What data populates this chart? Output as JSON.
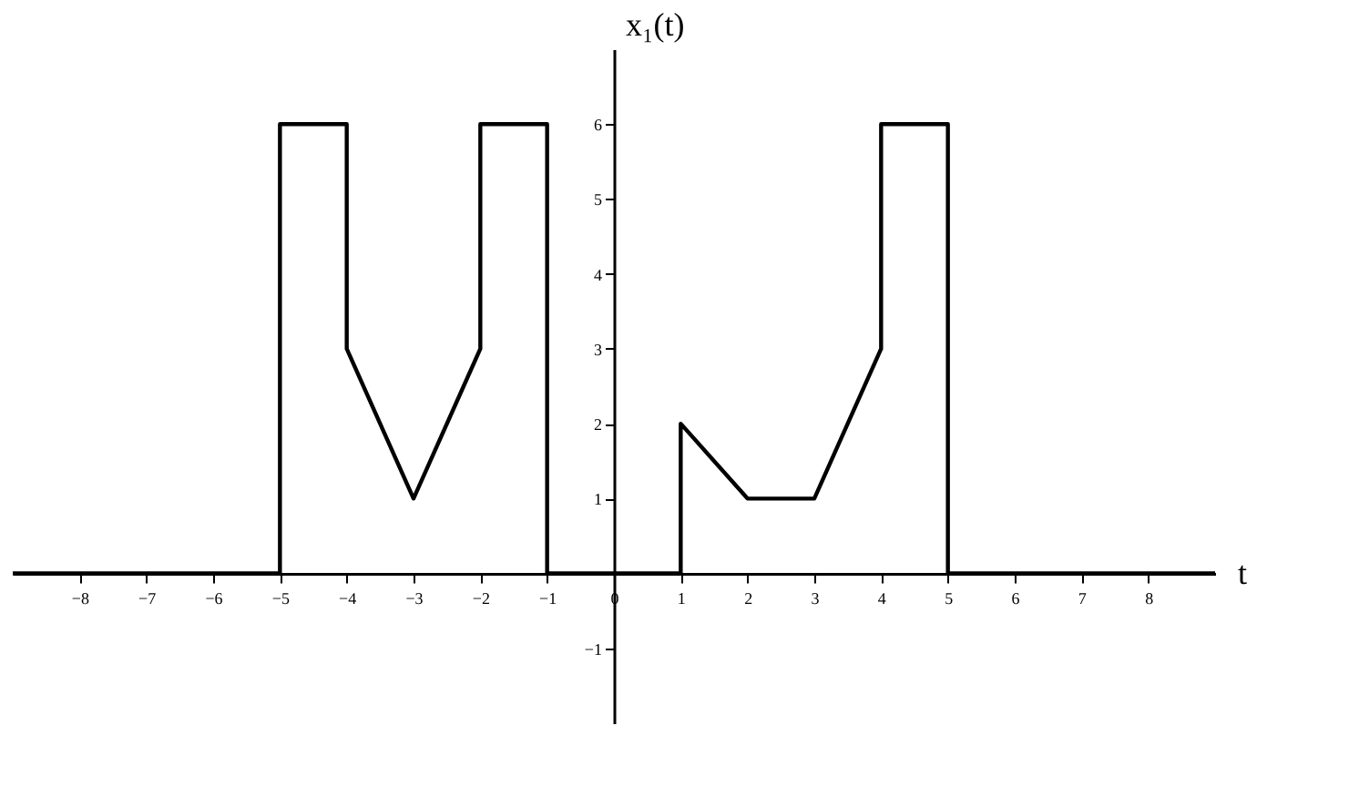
{
  "chart_data": {
    "type": "line",
    "xlabel": "t",
    "ylabel": "x₁(t)",
    "x": [
      -9,
      -5,
      -5,
      -4,
      -4,
      -3,
      -2,
      -2,
      -1,
      -1,
      1,
      1,
      2,
      3,
      4,
      4,
      5,
      5,
      9
    ],
    "series": [
      {
        "color": "#000000",
        "values": [
          0,
          0,
          6,
          6,
          3,
          1,
          3,
          6,
          6,
          0,
          0,
          2,
          1,
          1,
          3,
          6,
          6,
          0,
          0
        ]
      }
    ],
    "xlim": [
      -9,
      9
    ],
    "ylim": [
      -2,
      7
    ],
    "xticks": [
      -8,
      -7,
      -6,
      -5,
      -4,
      -3,
      -2,
      -1,
      0,
      1,
      2,
      3,
      4,
      5,
      6,
      7,
      8
    ],
    "yticks": [
      -1,
      1,
      2,
      3,
      4,
      5,
      6
    ],
    "grid": false,
    "marker": "none",
    "line_style": "solid"
  }
}
